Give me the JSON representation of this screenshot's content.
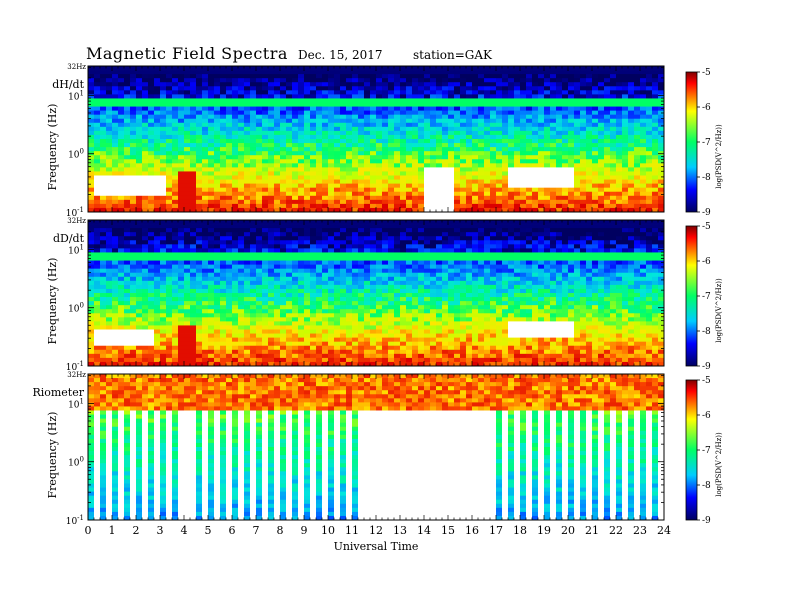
{
  "header": {
    "title": "Magnetic Field Spectra",
    "date": "Dec. 15, 2017",
    "station": "station=GAK"
  },
  "chart_data": [
    {
      "type": "heatmap",
      "panel_label": "dH/dt",
      "ylabel": "Frequency (Hz)",
      "xlabel": "",
      "top_freq_label": "32Hz",
      "y_tick_labels": [
        "10^-1",
        "10^0",
        "10^1"
      ],
      "ylim": [
        0.1,
        32
      ],
      "yscale": "log",
      "xlim": [
        0,
        24
      ],
      "colorbar": {
        "label": "log(PSD(V^2/Hz))",
        "ticks": [
          "-5",
          "-6",
          "-7",
          "-8",
          "-9"
        ],
        "range": [
          -9,
          -5
        ]
      },
      "features": {
        "narrowband_freq_hz": 7.8,
        "saturated_hours": [
          3.8,
          4.4
        ],
        "white_regions": [
          {
            "t0": 0.2,
            "t1": 3.2,
            "f0": 0.2,
            "f1": 0.4
          },
          {
            "t0": 14.0,
            "t1": 15.3,
            "f0": 0.1,
            "f1": 0.6
          },
          {
            "t0": 17.5,
            "t1": 20.2,
            "f0": 0.25,
            "f1": 0.55
          }
        ]
      }
    },
    {
      "type": "heatmap",
      "panel_label": "dD/dt",
      "ylabel": "Frequency (Hz)",
      "xlabel": "",
      "top_freq_label": "32Hz",
      "y_tick_labels": [
        "10^-1",
        "10^0",
        "10^1"
      ],
      "ylim": [
        0.1,
        32
      ],
      "yscale": "log",
      "xlim": [
        0,
        24
      ],
      "colorbar": {
        "label": "log(PSD(V^2/Hz))",
        "ticks": [
          "-5",
          "-6",
          "-7",
          "-8",
          "-9"
        ],
        "range": [
          -9,
          -5
        ]
      },
      "features": {
        "narrowband_freq_hz": 7.8,
        "saturated_hours": [
          3.8,
          4.4
        ],
        "white_regions": [
          {
            "t0": 0.3,
            "t1": 2.8,
            "f0": 0.22,
            "f1": 0.45
          },
          {
            "t0": 17.5,
            "t1": 20.2,
            "f0": 0.3,
            "f1": 0.6
          }
        ]
      }
    },
    {
      "type": "heatmap",
      "panel_label": "Riometer",
      "ylabel": "Frequency (Hz)",
      "xlabel": "Universal Time",
      "top_freq_label": "32Hz",
      "y_tick_labels": [
        "10^-1",
        "10^0",
        "10^1"
      ],
      "ylim": [
        0.1,
        32
      ],
      "yscale": "log",
      "xlim": [
        0,
        24
      ],
      "x_tick_labels": [
        "0",
        "1",
        "2",
        "3",
        "4",
        "5",
        "6",
        "7",
        "8",
        "9",
        "10",
        "11",
        "12",
        "13",
        "14",
        "15",
        "16",
        "17",
        "18",
        "19",
        "20",
        "21",
        "22",
        "23",
        "24"
      ],
      "colorbar": {
        "label": "log(PSD(V^2/Hz))",
        "ticks": [
          "-5",
          "-6",
          "-7",
          "-8",
          "-9"
        ],
        "range": [
          -9,
          -5
        ]
      },
      "features": {
        "gap_hours": [
          11.2,
          16.8
        ],
        "saturated_hours": [
          3.8,
          4.4
        ]
      }
    }
  ]
}
